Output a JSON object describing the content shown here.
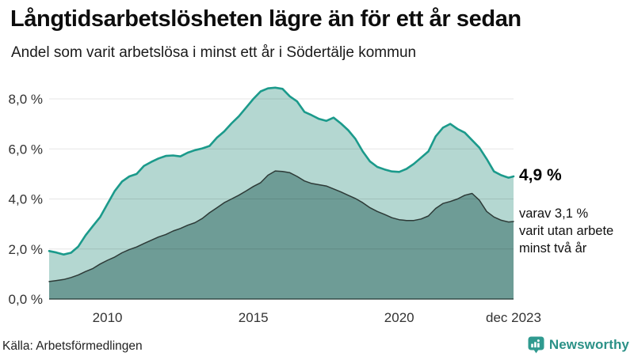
{
  "header": {
    "title": "Långtidsarbetslösheten lägre än för ett år sedan",
    "subtitle": "Andel som varit arbetslösa i minst ett år i Södertälje kommun"
  },
  "chart_data": {
    "type": "area",
    "title": "Långtidsarbetslösheten lägre än för ett år sedan",
    "subtitle": "Andel som varit arbetslösa i minst ett år i Södertälje kommun",
    "x_unit": "year",
    "x_range": [
      2008,
      2023.92
    ],
    "ylim": [
      0,
      8.5
    ],
    "grid": true,
    "legend_position": "right-annotations",
    "x": [
      2008.0,
      2008.25,
      2008.5,
      2008.75,
      2009.0,
      2009.25,
      2009.5,
      2009.75,
      2010.0,
      2010.25,
      2010.5,
      2010.75,
      2011.0,
      2011.25,
      2011.5,
      2011.75,
      2012.0,
      2012.25,
      2012.5,
      2012.75,
      2013.0,
      2013.25,
      2013.5,
      2013.75,
      2014.0,
      2014.25,
      2014.5,
      2014.75,
      2015.0,
      2015.25,
      2015.5,
      2015.75,
      2016.0,
      2016.25,
      2016.5,
      2016.75,
      2017.0,
      2017.25,
      2017.5,
      2017.75,
      2018.0,
      2018.25,
      2018.5,
      2018.75,
      2019.0,
      2019.25,
      2019.5,
      2019.75,
      2020.0,
      2020.25,
      2020.5,
      2020.75,
      2021.0,
      2021.25,
      2021.5,
      2021.75,
      2022.0,
      2022.25,
      2022.5,
      2022.75,
      2023.0,
      2023.25,
      2023.5,
      2023.75,
      2023.92
    ],
    "series": [
      {
        "name": "Arbetslösa minst ett år",
        "color": "#1b9a8b",
        "fill": "#b4d7d1",
        "line_width": 2.6,
        "latest_value": 4.9,
        "values": [
          1.92,
          1.86,
          1.78,
          1.85,
          2.1,
          2.55,
          2.92,
          3.28,
          3.8,
          4.32,
          4.7,
          4.9,
          5.0,
          5.32,
          5.48,
          5.62,
          5.72,
          5.74,
          5.7,
          5.85,
          5.95,
          6.02,
          6.12,
          6.45,
          6.7,
          7.02,
          7.3,
          7.65,
          8.0,
          8.3,
          8.42,
          8.45,
          8.4,
          8.1,
          7.9,
          7.48,
          7.35,
          7.2,
          7.12,
          7.25,
          7.02,
          6.75,
          6.4,
          5.9,
          5.5,
          5.28,
          5.18,
          5.1,
          5.08,
          5.2,
          5.4,
          5.65,
          5.9,
          6.5,
          6.85,
          7.0,
          6.8,
          6.65,
          6.35,
          6.05,
          5.6,
          5.1,
          4.95,
          4.85,
          4.9
        ]
      },
      {
        "name": "Arbetslösa minst två år",
        "color": "#2d3a37",
        "fill": "#6e9c96",
        "line_width": 1.5,
        "latest_value": 3.1,
        "values": [
          0.7,
          0.74,
          0.78,
          0.86,
          0.96,
          1.1,
          1.22,
          1.4,
          1.55,
          1.68,
          1.85,
          1.98,
          2.08,
          2.22,
          2.35,
          2.48,
          2.58,
          2.72,
          2.82,
          2.95,
          3.05,
          3.22,
          3.45,
          3.65,
          3.85,
          4.0,
          4.15,
          4.32,
          4.5,
          4.65,
          4.95,
          5.12,
          5.1,
          5.05,
          4.9,
          4.72,
          4.62,
          4.57,
          4.52,
          4.4,
          4.28,
          4.15,
          4.02,
          3.85,
          3.65,
          3.5,
          3.38,
          3.25,
          3.17,
          3.14,
          3.14,
          3.2,
          3.32,
          3.62,
          3.82,
          3.9,
          4.0,
          4.15,
          4.22,
          3.95,
          3.5,
          3.28,
          3.15,
          3.08,
          3.1
        ]
      }
    ],
    "yticks": [
      {
        "value": 0,
        "label": "0,0 %"
      },
      {
        "value": 2,
        "label": "2,0 %"
      },
      {
        "value": 4,
        "label": "4,0 %"
      },
      {
        "value": 6,
        "label": "6,0 %"
      },
      {
        "value": 8,
        "label": "8,0 %"
      }
    ],
    "xticks": [
      {
        "value": 2010,
        "label": "2010"
      },
      {
        "value": 2015,
        "label": "2015"
      },
      {
        "value": 2020,
        "label": "2020"
      },
      {
        "value": 2023.92,
        "label": "dec 2023"
      }
    ]
  },
  "annotations": {
    "latest_total_label": "4,9 %",
    "secondary": [
      "varav 3,1 %",
      "varit utan arbete",
      "minst två år"
    ]
  },
  "footer": {
    "source": "Källa: Arbetsförmedlingen",
    "brand_name": "Newsworthy",
    "brand_color": "#2b9187",
    "brand_icon": "newsworthy-logo-icon",
    "brand_icon_color": "#2f9a8f"
  }
}
